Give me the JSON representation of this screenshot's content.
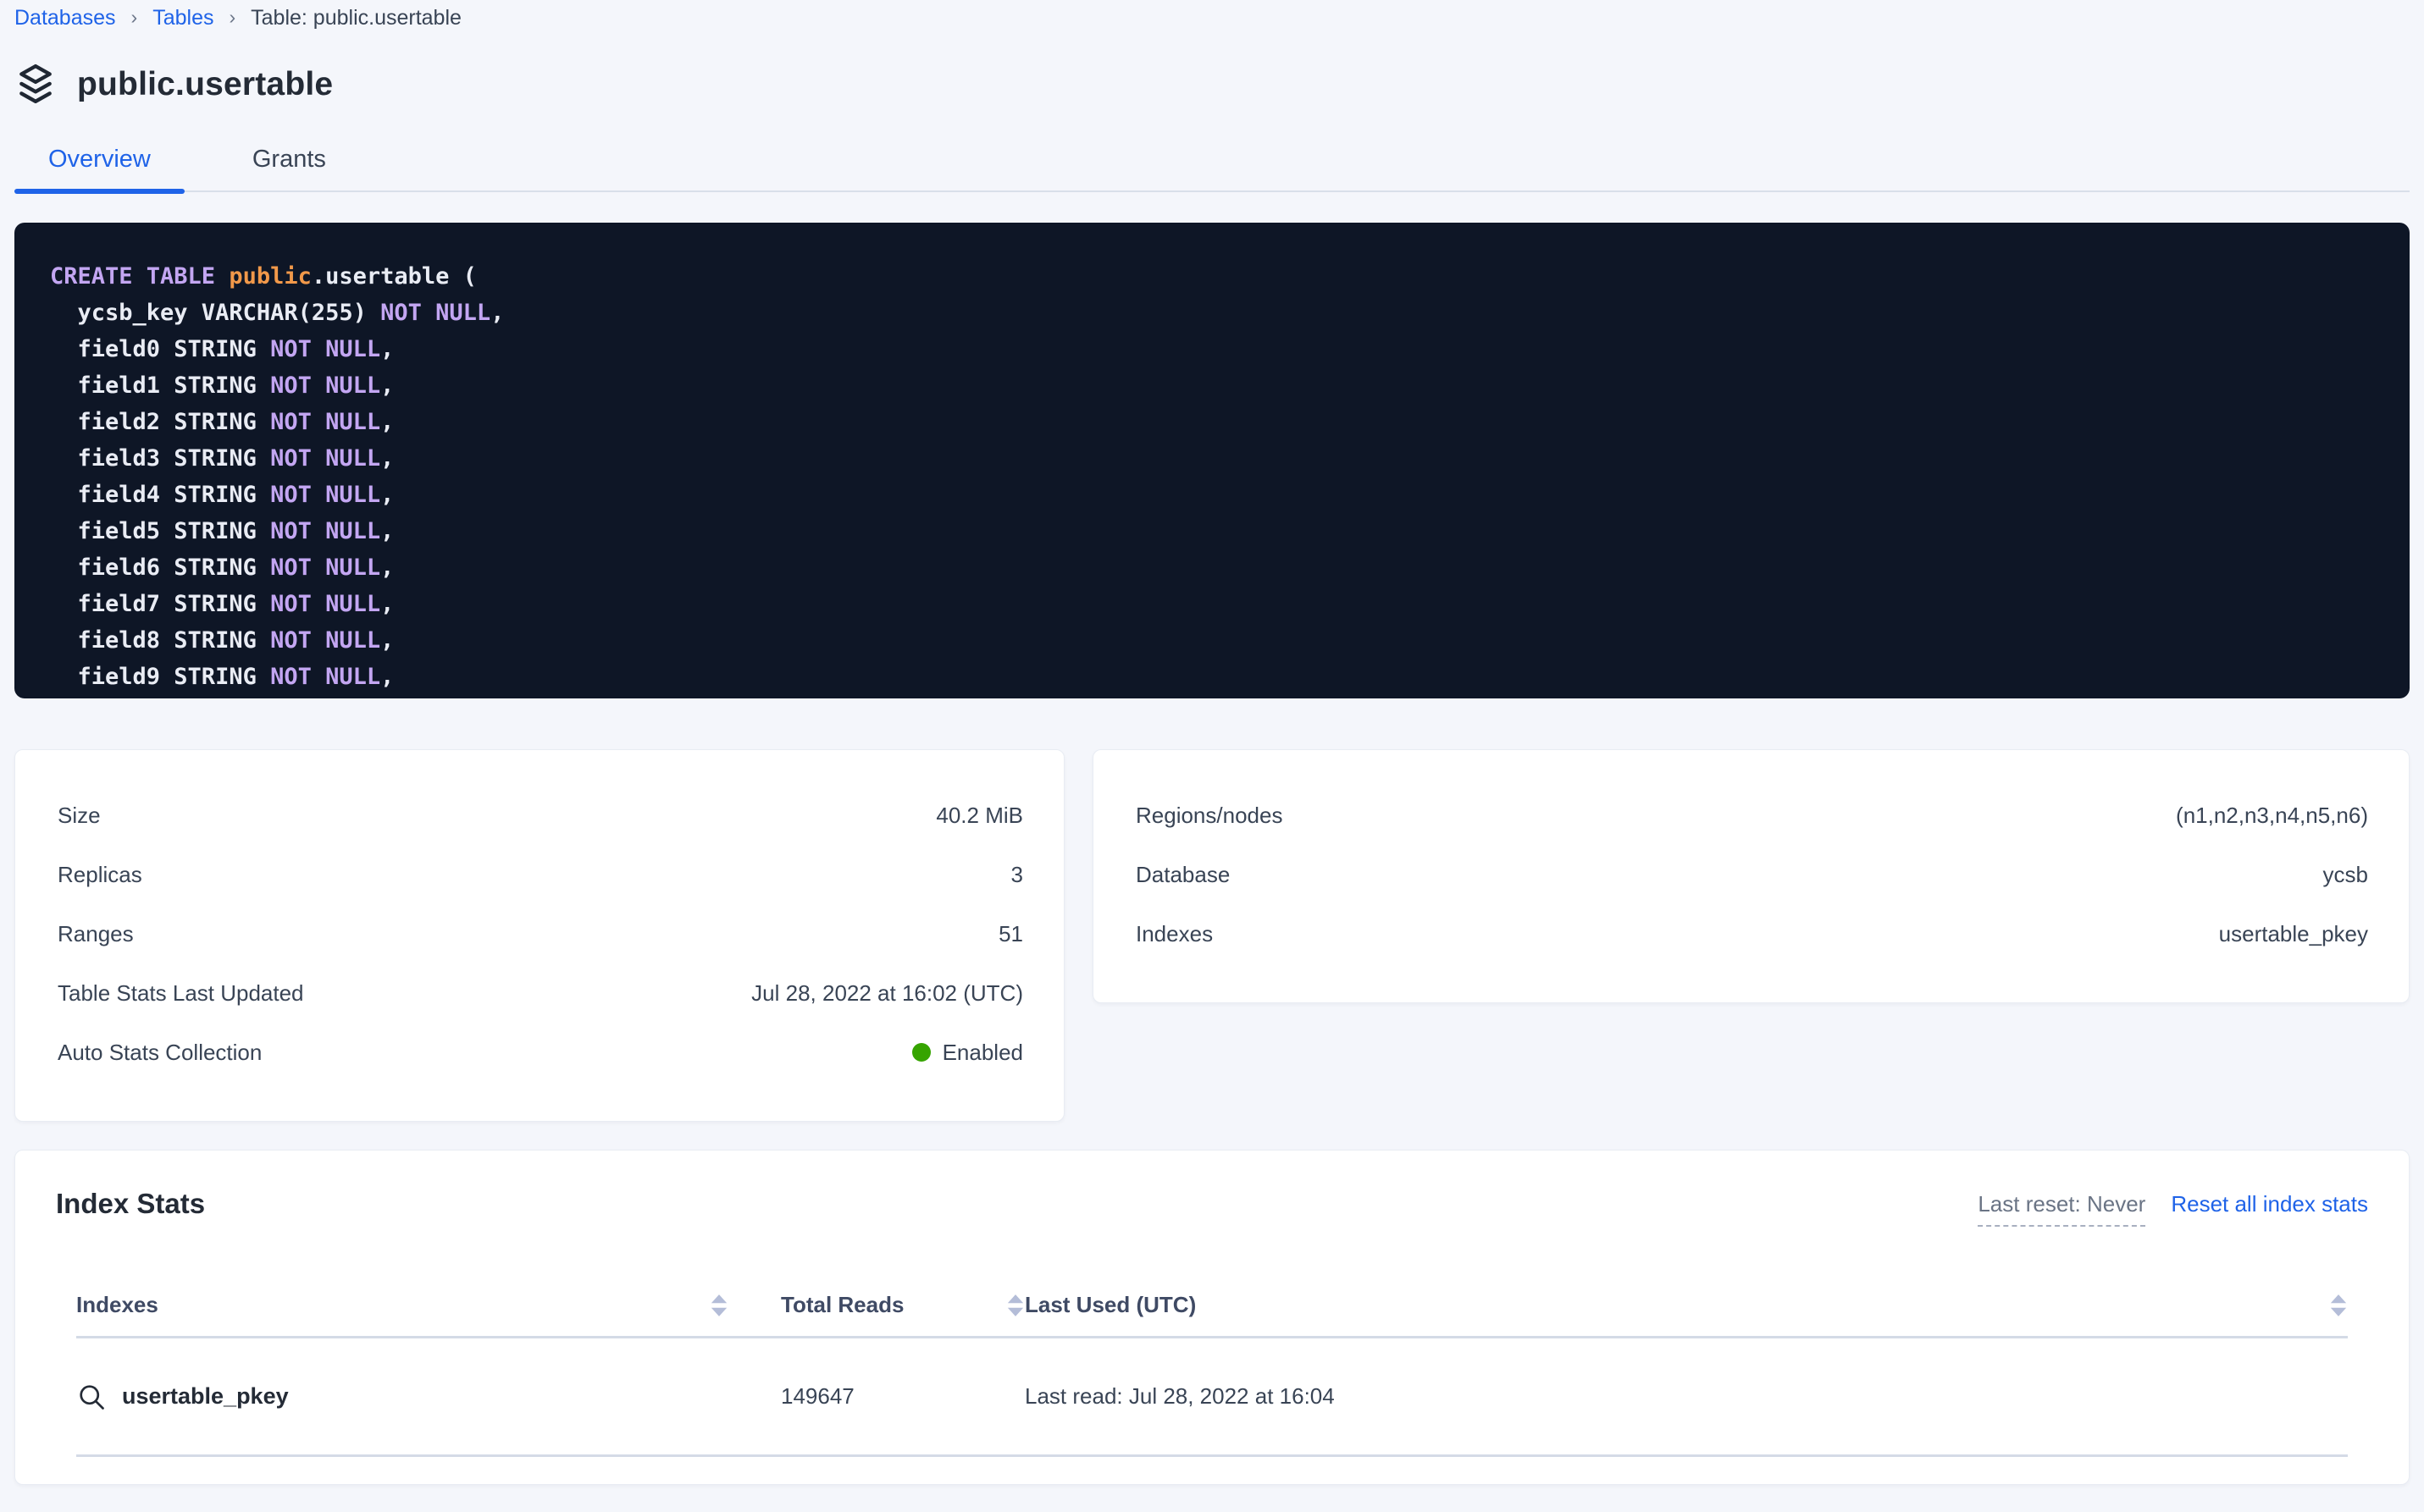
{
  "colors": {
    "accent_blue": "#1f63e8",
    "status_green": "#36a400",
    "code_background": "#0e1626",
    "code_keyword": "#c3a6f2",
    "code_accent_orange": "#f2994a",
    "code_plain": "#e9ecf4"
  },
  "breadcrumb": {
    "separator": "›",
    "items": [
      {
        "label": "Databases"
      },
      {
        "label": "Tables"
      }
    ],
    "current": "Table: public.usertable"
  },
  "header": {
    "title": "public.usertable",
    "icon": "stack-layers-icon"
  },
  "tabs": [
    {
      "label": "Overview",
      "active": true
    },
    {
      "label": "Grants",
      "active": false
    }
  ],
  "sql": {
    "lines": [
      {
        "segments": [
          {
            "text": "CREATE TABLE ",
            "color": "kw"
          },
          {
            "text": "public",
            "color": "accent"
          },
          {
            "text": ".usertable (",
            "color": "plain"
          }
        ]
      },
      {
        "segments": [
          {
            "text": "  ycsb_key VARCHAR(255) ",
            "color": "plain"
          },
          {
            "text": "NOT NULL",
            "color": "kw"
          },
          {
            "text": ",",
            "color": "plain"
          }
        ]
      },
      {
        "segments": [
          {
            "text": "  field0 STRING ",
            "color": "plain"
          },
          {
            "text": "NOT NULL",
            "color": "kw"
          },
          {
            "text": ",",
            "color": "plain"
          }
        ]
      },
      {
        "segments": [
          {
            "text": "  field1 STRING ",
            "color": "plain"
          },
          {
            "text": "NOT NULL",
            "color": "kw"
          },
          {
            "text": ",",
            "color": "plain"
          }
        ]
      },
      {
        "segments": [
          {
            "text": "  field2 STRING ",
            "color": "plain"
          },
          {
            "text": "NOT NULL",
            "color": "kw"
          },
          {
            "text": ",",
            "color": "plain"
          }
        ]
      },
      {
        "segments": [
          {
            "text": "  field3 STRING ",
            "color": "plain"
          },
          {
            "text": "NOT NULL",
            "color": "kw"
          },
          {
            "text": ",",
            "color": "plain"
          }
        ]
      },
      {
        "segments": [
          {
            "text": "  field4 STRING ",
            "color": "plain"
          },
          {
            "text": "NOT NULL",
            "color": "kw"
          },
          {
            "text": ",",
            "color": "plain"
          }
        ]
      },
      {
        "segments": [
          {
            "text": "  field5 STRING ",
            "color": "plain"
          },
          {
            "text": "NOT NULL",
            "color": "kw"
          },
          {
            "text": ",",
            "color": "plain"
          }
        ]
      },
      {
        "segments": [
          {
            "text": "  field6 STRING ",
            "color": "plain"
          },
          {
            "text": "NOT NULL",
            "color": "kw"
          },
          {
            "text": ",",
            "color": "plain"
          }
        ]
      },
      {
        "segments": [
          {
            "text": "  field7 STRING ",
            "color": "plain"
          },
          {
            "text": "NOT NULL",
            "color": "kw"
          },
          {
            "text": ",",
            "color": "plain"
          }
        ]
      },
      {
        "segments": [
          {
            "text": "  field8 STRING ",
            "color": "plain"
          },
          {
            "text": "NOT NULL",
            "color": "kw"
          },
          {
            "text": ",",
            "color": "plain"
          }
        ]
      },
      {
        "segments": [
          {
            "text": "  field9 STRING ",
            "color": "plain"
          },
          {
            "text": "NOT NULL",
            "color": "kw"
          },
          {
            "text": ",",
            "color": "plain"
          }
        ]
      }
    ]
  },
  "summary_left": {
    "rows": [
      {
        "label": "Size",
        "value": "40.2 MiB"
      },
      {
        "label": "Replicas",
        "value": "3"
      },
      {
        "label": "Ranges",
        "value": "51"
      },
      {
        "label": "Table Stats Last Updated",
        "value": "Jul 28, 2022 at 16:02 (UTC)"
      },
      {
        "label": "Auto Stats Collection",
        "value": "Enabled",
        "dot": true
      }
    ]
  },
  "summary_right": {
    "rows": [
      {
        "label": "Regions/nodes",
        "value": "(n1,n2,n3,n4,n5,n6)"
      },
      {
        "label": "Database",
        "value": "ycsb"
      },
      {
        "label": "Indexes",
        "value": "usertable_pkey"
      }
    ]
  },
  "index_stats": {
    "title": "Index Stats",
    "last_reset_label": "Last reset: Never",
    "reset_link_label": "Reset all index stats",
    "columns": [
      "Indexes",
      "Total Reads",
      "Last Used (UTC)"
    ],
    "rows": [
      {
        "name": "usertable_pkey",
        "total_reads": "149647",
        "last_used": "Last read: Jul 28, 2022 at 16:04"
      }
    ]
  }
}
